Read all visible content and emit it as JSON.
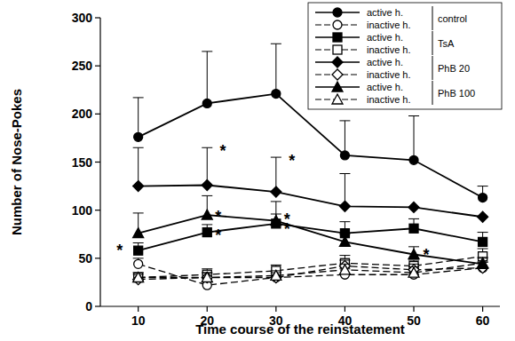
{
  "chart_data": {
    "type": "line",
    "x_label": "Time course of the reinstatement",
    "y_label": "Number of Nose-Pokes",
    "x": [
      10,
      20,
      30,
      40,
      50,
      60
    ],
    "xlim": [
      4.5,
      62.5
    ],
    "xticks": [
      10,
      20,
      30,
      40,
      50,
      60
    ],
    "ylim": [
      0,
      300
    ],
    "yticks": [
      0,
      50,
      100,
      150,
      200,
      250,
      300
    ],
    "grid": false,
    "legend": "upper right",
    "legend_groups": [
      "control",
      "TsA",
      "PhB 20",
      "PhB 100"
    ],
    "series": [
      {
        "name": "active h.",
        "color": "#000000",
        "marker": "circle",
        "line_style": "solid",
        "values": [
          176,
          211,
          221,
          157,
          152,
          113
        ],
        "errors": [
          41,
          54,
          52,
          36,
          46,
          12
        ]
      },
      {
        "name": "inactive h.",
        "color": "#000000",
        "marker": "circle-open",
        "line_style": "dashed",
        "values": [
          44,
          22,
          30,
          33,
          33,
          40
        ],
        "errors": [
          6,
          4,
          5,
          6,
          6,
          6
        ]
      },
      {
        "name": "active h.",
        "color": "#000000",
        "marker": "square",
        "line_style": "solid",
        "values": [
          58,
          77,
          86,
          76,
          81,
          67
        ],
        "errors": [
          8,
          8,
          10,
          12,
          10,
          10
        ]
      },
      {
        "name": "inactive h.",
        "color": "#000000",
        "marker": "square-open",
        "line_style": "dashed",
        "values": [
          30,
          33,
          37,
          45,
          42,
          52
        ],
        "errors": [
          5,
          6,
          6,
          8,
          6,
          8
        ]
      },
      {
        "name": "active h.",
        "color": "#000000",
        "marker": "diamond",
        "line_style": "solid",
        "values": [
          125,
          126,
          119,
          104,
          103,
          93
        ],
        "errors": [
          40,
          39,
          36,
          34,
          0,
          0
        ]
      },
      {
        "name": "inactive h.",
        "color": "#000000",
        "marker": "diamond-open",
        "line_style": "dashed",
        "values": [
          28,
          30,
          30,
          42,
          38,
          40
        ],
        "errors": [
          5,
          5,
          5,
          6,
          6,
          6
        ]
      },
      {
        "name": "active h.",
        "color": "#000000",
        "marker": "triangle",
        "line_style": "solid",
        "values": [
          76,
          95,
          89,
          67,
          54,
          44
        ],
        "errors": [
          21,
          20,
          20,
          8,
          8,
          6
        ]
      },
      {
        "name": "inactive h.",
        "color": "#000000",
        "marker": "triangle-open",
        "line_style": "dashed",
        "values": [
          30,
          30,
          32,
          38,
          35,
          45
        ],
        "errors": [
          5,
          5,
          5,
          6,
          6,
          6
        ]
      }
    ],
    "annotations": [
      {
        "text": "*",
        "x": 7.3,
        "y": 60
      },
      {
        "text": "*",
        "x": 22.3,
        "y": 163
      },
      {
        "text": "*",
        "x": 21.6,
        "y": 95
      },
      {
        "text": "*",
        "x": 21.6,
        "y": 76
      },
      {
        "text": "*",
        "x": 32.3,
        "y": 153
      },
      {
        "text": "*",
        "x": 31.6,
        "y": 92
      },
      {
        "text": "*",
        "x": 31.6,
        "y": 82
      },
      {
        "text": "*",
        "x": 51.8,
        "y": 55
      }
    ]
  }
}
